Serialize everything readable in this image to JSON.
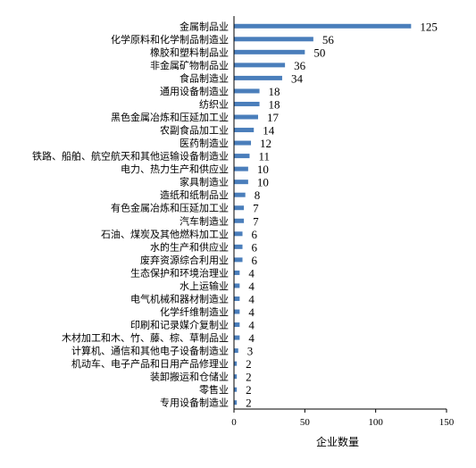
{
  "chart_data": {
    "type": "bar",
    "orientation": "horizontal",
    "categories": [
      "金属制品业",
      "化学原料和化学制品制造业",
      "橡胶和塑料制品业",
      "非金属矿物制品业",
      "食品制造业",
      "通用设备制造业",
      "纺织业",
      "黑色金属冶炼和压延加工业",
      "农副食品加工业",
      "医药制造业",
      "铁路、船舶、航空航天和其他运输设备制造业",
      "电力、热力生产和供应业",
      "家具制造业",
      "造纸和纸制品业",
      "有色金属冶炼和压延加工业",
      "汽车制造业",
      "石油、煤炭及其他燃料加工业",
      "水的生产和供应业",
      "废弃资源综合利用业",
      "生态保护和环境治理业",
      "水上运输业",
      "电气机械和器材制造业",
      "化学纤维制造业",
      "印刷和记录媒介复制业",
      "木材加工和木、竹、藤、棕、草制品业",
      "计算机、通信和其他电子设备制造业",
      "机动车、电子产品和日用产品修理业",
      "装卸搬运和仓储业",
      "零售业",
      "专用设备制造业"
    ],
    "values": [
      125,
      56,
      50,
      36,
      34,
      18,
      18,
      17,
      14,
      12,
      11,
      10,
      10,
      8,
      7,
      7,
      6,
      6,
      6,
      4,
      4,
      4,
      4,
      4,
      4,
      3,
      2,
      2,
      2,
      2
    ],
    "xlabel": "企业数量",
    "xlim": [
      0,
      150
    ],
    "xticks": [
      0,
      50,
      100,
      150
    ],
    "bar_color": "#4a7ebb",
    "grid": false,
    "data_labels": true
  }
}
